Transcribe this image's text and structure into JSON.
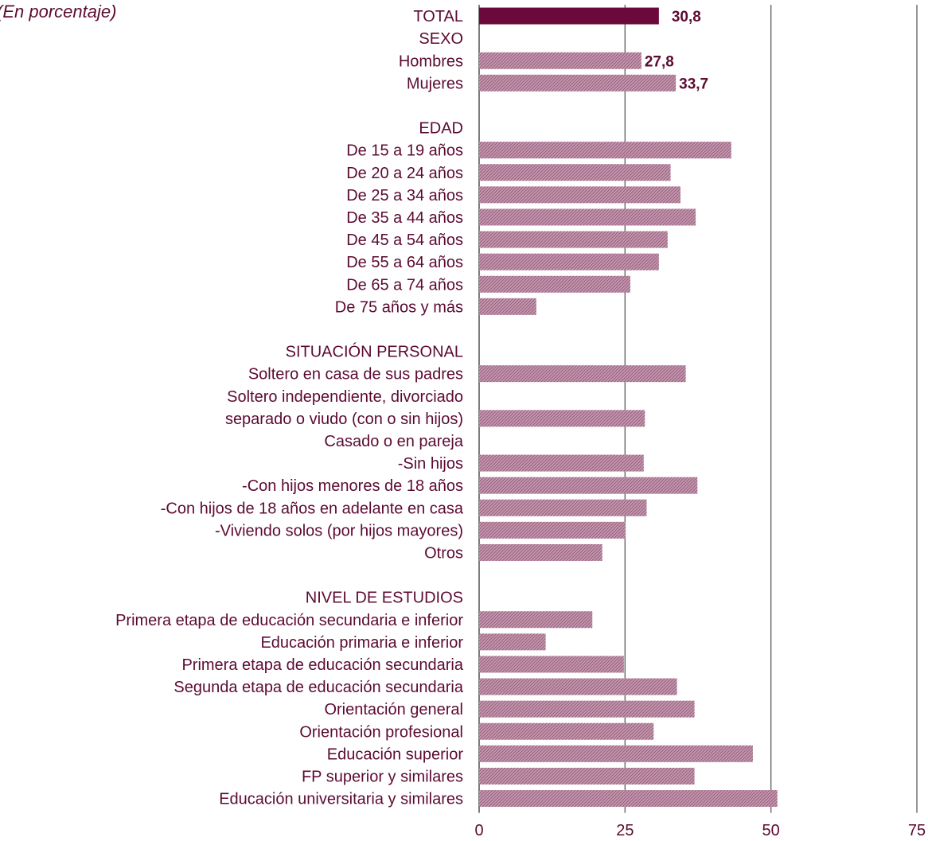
{
  "subtitle": "(En porcentaje)",
  "colors": {
    "total": "#6b0a3a",
    "bar": "#b07a95",
    "text": "#5c0a32",
    "grid": "#555555"
  },
  "chart_data": {
    "type": "bar",
    "orientation": "horizontal",
    "title": "",
    "subtitle": "(En porcentaje)",
    "xlabel": "",
    "ylabel": "",
    "xlim": [
      0,
      75
    ],
    "xticks": [
      0,
      25,
      50,
      75
    ],
    "grid": true,
    "rows": [
      {
        "label": "TOTAL",
        "value": 30.8,
        "data_label": "30,8",
        "highlight": true
      },
      {
        "label": "SEXO",
        "value": null
      },
      {
        "label": "Hombres",
        "value": 27.8,
        "data_label": "27,8"
      },
      {
        "label": "Mujeres",
        "value": 33.7,
        "data_label": "33,7"
      },
      {
        "label": "",
        "value": null
      },
      {
        "label": "EDAD",
        "value": null
      },
      {
        "label": "De 15 a 19 años",
        "value": 43.2
      },
      {
        "label": "De 20 a 24 años",
        "value": 32.8
      },
      {
        "label": "De 25 a 34 años",
        "value": 34.5
      },
      {
        "label": "De 35 a 44 años",
        "value": 37.1
      },
      {
        "label": "De 45 a 54 años",
        "value": 32.3
      },
      {
        "label": "De 55 a 64 años",
        "value": 30.8
      },
      {
        "label": "De 65 a 74 años",
        "value": 25.9
      },
      {
        "label": "De 75 años y más",
        "value": 9.8
      },
      {
        "label": "",
        "value": null
      },
      {
        "label": "SITUACIÓN PERSONAL",
        "value": null
      },
      {
        "label": "Soltero en casa de sus padres",
        "value": 35.4
      },
      {
        "label": "Soltero independiente, divorciado",
        "value": null
      },
      {
        "label": "separado o viudo (con o sin hijos)",
        "value": 28.4
      },
      {
        "label": "Casado o en pareja",
        "value": null
      },
      {
        "label": "-Sin hijos",
        "value": 28.2
      },
      {
        "label": "-Con hijos menores de 18 años",
        "value": 37.4
      },
      {
        "label": "-Con hijos de 18 años en adelante en casa",
        "value": 28.7
      },
      {
        "label": "-Viviendo solos (por hijos mayores)",
        "value": 25.1
      },
      {
        "label": "Otros",
        "value": 21.1
      },
      {
        "label": "",
        "value": null
      },
      {
        "label": "NIVEL DE ESTUDIOS",
        "value": null
      },
      {
        "label": "Primera etapa de educación secundaria e inferior",
        "value": 19.4
      },
      {
        "label": "Educación primaria e inferior",
        "value": 11.4
      },
      {
        "label": "Primera etapa de educación secundaria",
        "value": 24.8
      },
      {
        "label": "Segunda etapa de educación secundaria",
        "value": 33.9
      },
      {
        "label": "Orientación general",
        "value": 36.9
      },
      {
        "label": "Orientación profesional",
        "value": 29.9
      },
      {
        "label": "Educación superior",
        "value": 46.9
      },
      {
        "label": "FP superior y similares",
        "value": 36.9
      },
      {
        "label": "Educación universitaria y similares",
        "value": 51.1
      }
    ]
  }
}
